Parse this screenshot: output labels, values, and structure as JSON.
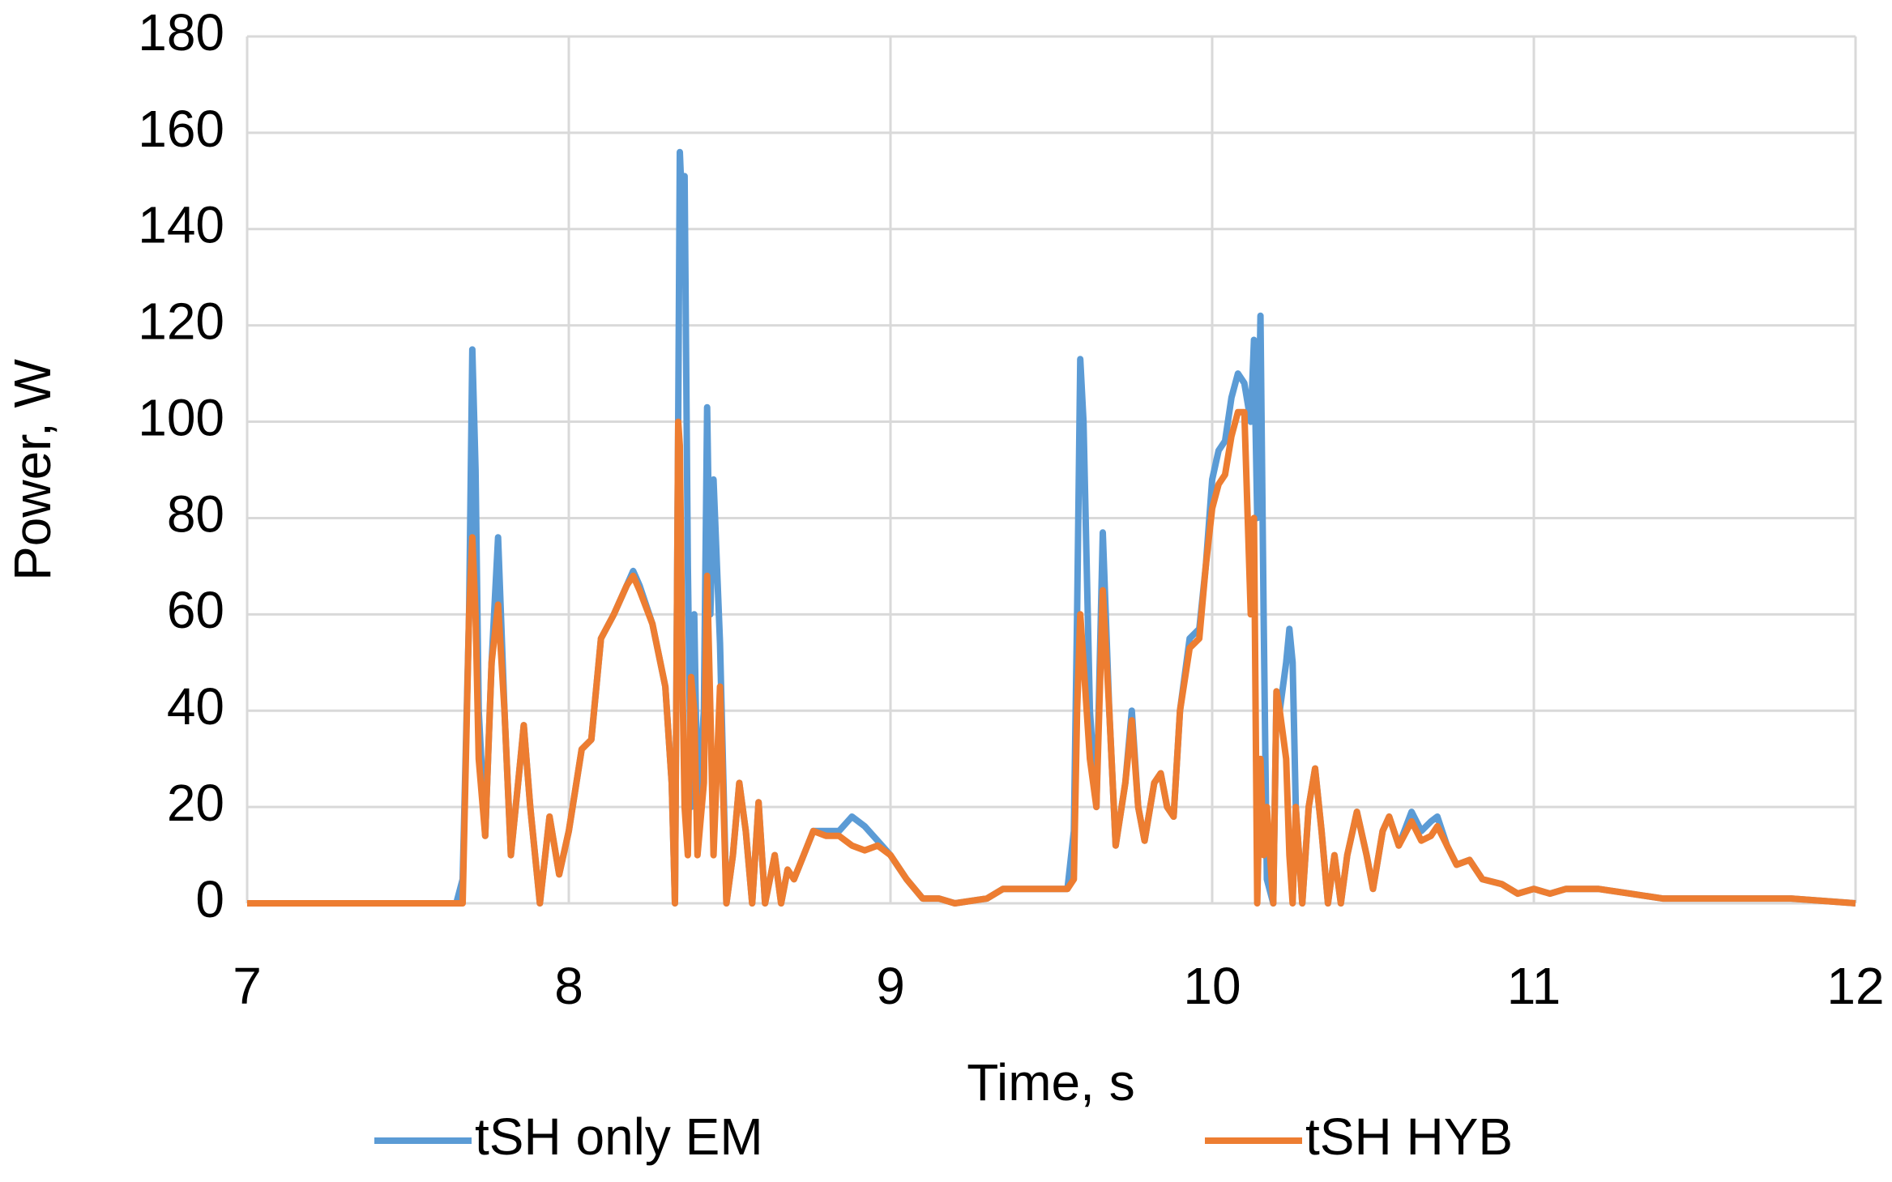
{
  "chart_data": {
    "type": "line",
    "x_label": "Time, s",
    "y_label": "Power, W",
    "x": [
      7.0,
      7.3,
      7.65,
      7.67,
      7.69,
      7.7,
      7.71,
      7.72,
      7.74,
      7.76,
      7.78,
      7.8,
      7.82,
      7.85,
      7.86,
      7.88,
      7.91,
      7.94,
      7.97,
      8.0,
      8.04,
      8.07,
      8.1,
      8.14,
      8.18,
      8.2,
      8.22,
      8.26,
      8.3,
      8.32,
      8.33,
      8.34,
      8.345,
      8.355,
      8.36,
      8.37,
      8.38,
      8.39,
      8.4,
      8.42,
      8.43,
      8.44,
      8.45,
      8.47,
      8.49,
      8.51,
      8.53,
      8.55,
      8.57,
      8.59,
      8.61,
      8.64,
      8.66,
      8.68,
      8.7,
      8.73,
      8.76,
      8.8,
      8.84,
      8.88,
      8.92,
      8.96,
      9.0,
      9.05,
      9.1,
      9.15,
      9.2,
      9.3,
      9.35,
      9.4,
      9.5,
      9.55,
      9.57,
      9.58,
      9.59,
      9.6,
      9.62,
      9.64,
      9.66,
      9.68,
      9.7,
      9.73,
      9.75,
      9.77,
      9.79,
      9.82,
      9.84,
      9.86,
      9.88,
      9.9,
      9.93,
      9.96,
      9.98,
      10.0,
      10.02,
      10.04,
      10.06,
      10.08,
      10.1,
      10.12,
      10.13,
      10.14,
      10.15,
      10.16,
      10.17,
      10.19,
      10.2,
      10.21,
      10.23,
      10.24,
      10.25,
      10.26,
      10.28,
      10.3,
      10.32,
      10.34,
      10.36,
      10.38,
      10.4,
      10.42,
      10.45,
      10.48,
      10.5,
      10.53,
      10.55,
      10.58,
      10.62,
      10.65,
      10.68,
      10.7,
      10.73,
      10.76,
      10.8,
      10.84,
      10.9,
      10.95,
      11.0,
      11.05,
      11.1,
      11.2,
      11.3,
      11.4,
      11.5,
      11.8,
      12.0
    ],
    "series": [
      {
        "name": "tSH only EM",
        "color": "#5b9bd5",
        "values": [
          0,
          0,
          0,
          5,
          60,
          115,
          90,
          40,
          14,
          50,
          76,
          40,
          10,
          30,
          37,
          20,
          0,
          18,
          6,
          15,
          32,
          34,
          55,
          60,
          66,
          69,
          66,
          58,
          45,
          25,
          0,
          100,
          156,
          140,
          151,
          70,
          20,
          60,
          20,
          40,
          103,
          60,
          88,
          54,
          0,
          10,
          25,
          15,
          0,
          21,
          0,
          10,
          0,
          7,
          5,
          10,
          15,
          15,
          15,
          18,
          16,
          13,
          10,
          5,
          1,
          1,
          0,
          1,
          3,
          3,
          3,
          3,
          15,
          60,
          113,
          100,
          40,
          20,
          77,
          40,
          12,
          25,
          40,
          20,
          13,
          25,
          27,
          20,
          18,
          40,
          55,
          57,
          70,
          88,
          94,
          96,
          105,
          110,
          108,
          100,
          117,
          80,
          122,
          60,
          5,
          0,
          44,
          40,
          50,
          57,
          50,
          20,
          0,
          20,
          28,
          15,
          0,
          10,
          0,
          10,
          19,
          10,
          3,
          15,
          18,
          12,
          19,
          15,
          17,
          18,
          12,
          8,
          9,
          5,
          4,
          2,
          3,
          2,
          3,
          3,
          2,
          1,
          1,
          1,
          0
        ]
      },
      {
        "name": "tSH HYB",
        "color": "#ed7d31",
        "values": [
          0,
          0,
          0,
          0,
          60,
          76,
          60,
          30,
          14,
          50,
          62,
          40,
          10,
          30,
          37,
          20,
          0,
          18,
          6,
          15,
          32,
          34,
          55,
          60,
          66,
          68,
          65,
          58,
          45,
          25,
          0,
          100,
          95,
          40,
          20,
          10,
          47,
          40,
          10,
          25,
          68,
          40,
          10,
          45,
          0,
          10,
          25,
          15,
          0,
          21,
          0,
          10,
          0,
          7,
          5,
          10,
          15,
          14,
          14,
          12,
          11,
          12,
          10,
          5,
          1,
          1,
          0,
          1,
          3,
          3,
          3,
          3,
          5,
          40,
          60,
          50,
          30,
          20,
          65,
          40,
          12,
          25,
          38,
          20,
          13,
          25,
          27,
          20,
          18,
          40,
          53,
          55,
          70,
          82,
          87,
          89,
          97,
          102,
          102,
          60,
          80,
          0,
          30,
          10,
          20,
          0,
          44,
          40,
          30,
          10,
          0,
          20,
          0,
          20,
          28,
          15,
          0,
          10,
          0,
          10,
          19,
          10,
          3,
          15,
          18,
          12,
          17,
          13,
          14,
          16,
          12,
          8,
          9,
          5,
          4,
          2,
          3,
          2,
          3,
          3,
          2,
          1,
          1,
          1,
          0
        ]
      }
    ],
    "xlim": [
      7,
      12
    ],
    "xticks": [
      7,
      8,
      9,
      10,
      11,
      12
    ],
    "ylim": [
      0,
      180
    ],
    "yticks": [
      0,
      20,
      40,
      60,
      80,
      100,
      120,
      140,
      160,
      180
    ],
    "grid": true,
    "legend": "bottom"
  }
}
